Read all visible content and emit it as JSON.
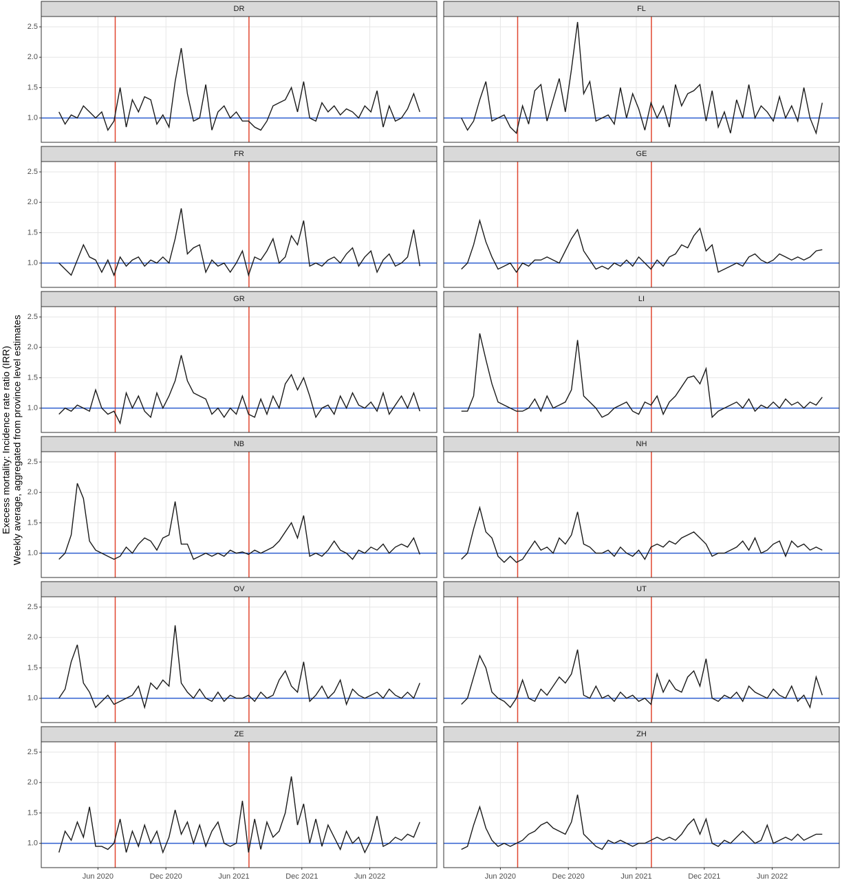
{
  "chart_data": {
    "type": "line",
    "y_label": [
      "Execess mortality: Incidence rate ratio (IRR)",
      "Weekly average, aggregated from province level estimates"
    ],
    "x": [
      2020.13,
      2020.175,
      2020.22,
      2020.265,
      2020.31,
      2020.355,
      2020.4,
      2020.445,
      2020.49,
      2020.535,
      2020.58,
      2020.625,
      2020.67,
      2020.715,
      2020.76,
      2020.805,
      2020.85,
      2020.895,
      2020.94,
      2020.985,
      2021.03,
      2021.075,
      2021.12,
      2021.165,
      2021.21,
      2021.255,
      2021.3,
      2021.345,
      2021.39,
      2021.435,
      2021.48,
      2021.525,
      2021.57,
      2021.615,
      2021.66,
      2021.705,
      2021.75,
      2021.795,
      2021.84,
      2021.885,
      2021.93,
      2021.975,
      2022.02,
      2022.065,
      2022.11,
      2022.155,
      2022.2,
      2022.245,
      2022.29,
      2022.335,
      2022.38,
      2022.425,
      2022.47,
      2022.515,
      2022.56,
      2022.605,
      2022.65,
      2022.695,
      2022.74,
      2022.785
    ],
    "xlim": [
      2020.0,
      2022.91
    ],
    "xticks": [
      {
        "value": 2020.417,
        "label": "Jun 2020"
      },
      {
        "value": 2020.917,
        "label": "Dec 2020"
      },
      {
        "value": 2021.417,
        "label": "Jun 2021"
      },
      {
        "value": 2021.917,
        "label": "Dec 2021"
      },
      {
        "value": 2022.417,
        "label": "Jun 2022"
      }
    ],
    "ylim": [
      0.6,
      2.67
    ],
    "yticks": [
      {
        "value": 1,
        "label": "1.0"
      },
      1.5,
      {
        "value": 2,
        "label": "2.0"
      },
      2.5
    ],
    "grid": true,
    "line_color": "#1a1a1a",
    "hline": {
      "value": 1,
      "color": "#2f5fd0"
    },
    "vlines": {
      "values": [
        2020.544,
        2021.528
      ],
      "color": "#e0452f"
    },
    "panels": [
      {
        "title": "DR",
        "values": [
          1.1,
          0.9,
          1.05,
          1.0,
          1.2,
          1.1,
          1.0,
          1.1,
          0.8,
          0.95,
          1.5,
          0.85,
          1.3,
          1.1,
          1.35,
          1.3,
          0.9,
          1.05,
          0.85,
          1.6,
          2.15,
          1.4,
          0.95,
          1.0,
          1.55,
          0.8,
          1.1,
          1.2,
          1.0,
          1.1,
          0.95,
          0.95,
          0.85,
          0.8,
          0.95,
          1.2,
          1.25,
          1.3,
          1.5,
          1.1,
          1.6,
          1.0,
          0.95,
          1.25,
          1.1,
          1.2,
          1.05,
          1.15,
          1.1,
          1.0,
          1.2,
          1.1,
          1.45,
          0.85,
          1.2,
          0.95,
          1.0,
          1.15,
          1.4,
          1.1
        ]
      },
      {
        "title": "FL",
        "values": [
          1.0,
          0.8,
          0.95,
          1.3,
          1.6,
          0.95,
          1.0,
          1.05,
          0.85,
          0.75,
          1.2,
          0.9,
          1.45,
          1.55,
          0.95,
          1.3,
          1.65,
          1.1,
          1.8,
          2.58,
          1.4,
          1.6,
          0.95,
          1.0,
          1.05,
          0.9,
          1.5,
          1.0,
          1.4,
          1.15,
          0.8,
          1.25,
          1.0,
          1.2,
          0.85,
          1.55,
          1.2,
          1.4,
          1.45,
          1.55,
          0.95,
          1.45,
          0.85,
          1.1,
          0.75,
          1.3,
          1.0,
          1.55,
          1.0,
          1.2,
          1.1,
          0.95,
          1.35,
          1.0,
          1.2,
          0.95,
          1.5,
          1.0,
          0.75,
          1.25
        ]
      },
      {
        "title": "FR",
        "values": [
          1.0,
          0.9,
          0.8,
          1.05,
          1.3,
          1.1,
          1.05,
          0.85,
          1.05,
          0.8,
          1.1,
          0.95,
          1.05,
          1.1,
          0.95,
          1.05,
          1.0,
          1.1,
          1.0,
          1.4,
          1.9,
          1.15,
          1.25,
          1.3,
          0.85,
          1.05,
          0.95,
          1.0,
          0.85,
          1.0,
          1.2,
          0.8,
          1.1,
          1.05,
          1.2,
          1.4,
          1.0,
          1.1,
          1.45,
          1.3,
          1.7,
          0.95,
          1.0,
          0.95,
          1.05,
          1.1,
          1.0,
          1.15,
          1.25,
          0.95,
          1.1,
          1.2,
          0.85,
          1.05,
          1.15,
          0.95,
          1.0,
          1.1,
          1.55,
          0.95
        ]
      },
      {
        "title": "GE",
        "values": [
          0.9,
          1.0,
          1.3,
          1.7,
          1.35,
          1.1,
          0.9,
          0.95,
          1.0,
          0.85,
          1.0,
          0.95,
          1.05,
          1.05,
          1.1,
          1.05,
          1.0,
          1.2,
          1.4,
          1.55,
          1.2,
          1.05,
          0.9,
          0.95,
          0.9,
          1.0,
          0.95,
          1.05,
          0.95,
          1.1,
          1.0,
          0.9,
          1.05,
          0.95,
          1.1,
          1.15,
          1.3,
          1.25,
          1.45,
          1.57,
          1.2,
          1.3,
          0.85,
          0.9,
          0.95,
          1.0,
          0.95,
          1.1,
          1.15,
          1.05,
          1.0,
          1.05,
          1.15,
          1.1,
          1.05,
          1.1,
          1.05,
          1.1,
          1.2,
          1.22
        ]
      },
      {
        "title": "GR",
        "values": [
          0.9,
          1.0,
          0.95,
          1.05,
          1.0,
          0.95,
          1.3,
          1.0,
          0.9,
          0.95,
          0.75,
          1.25,
          1.0,
          1.2,
          0.95,
          0.85,
          1.25,
          1.0,
          1.2,
          1.45,
          1.87,
          1.45,
          1.25,
          1.2,
          1.15,
          0.9,
          1.0,
          0.85,
          1.0,
          0.9,
          1.2,
          0.9,
          0.85,
          1.15,
          0.9,
          1.2,
          1.0,
          1.4,
          1.55,
          1.3,
          1.5,
          1.2,
          0.85,
          1.0,
          1.05,
          0.9,
          1.2,
          1.0,
          1.25,
          1.05,
          1.0,
          1.1,
          0.95,
          1.25,
          0.9,
          1.05,
          1.2,
          1.0,
          1.25,
          0.95
        ]
      },
      {
        "title": "LI",
        "values": [
          0.95,
          0.95,
          1.2,
          2.23,
          1.8,
          1.4,
          1.1,
          1.05,
          1.0,
          0.95,
          0.95,
          1.0,
          1.15,
          0.95,
          1.2,
          1.0,
          1.05,
          1.1,
          1.3,
          2.12,
          1.2,
          1.1,
          1.0,
          0.85,
          0.9,
          1.0,
          1.05,
          1.1,
          0.95,
          0.9,
          1.1,
          1.05,
          1.2,
          0.9,
          1.1,
          1.2,
          1.35,
          1.5,
          1.53,
          1.4,
          1.65,
          0.85,
          0.95,
          1.0,
          1.05,
          1.1,
          1.0,
          1.15,
          0.95,
          1.05,
          1.0,
          1.1,
          1.0,
          1.15,
          1.05,
          1.1,
          1.0,
          1.1,
          1.05,
          1.18
        ]
      },
      {
        "title": "NB",
        "values": [
          0.9,
          1.0,
          1.3,
          2.15,
          1.9,
          1.2,
          1.05,
          1.0,
          0.95,
          0.9,
          0.95,
          1.1,
          1.0,
          1.15,
          1.25,
          1.2,
          1.05,
          1.25,
          1.3,
          1.85,
          1.15,
          1.15,
          0.9,
          0.95,
          1.0,
          0.95,
          1.0,
          0.95,
          1.05,
          1.0,
          1.02,
          0.98,
          1.05,
          1.0,
          1.05,
          1.1,
          1.2,
          1.35,
          1.5,
          1.25,
          1.62,
          0.95,
          1.0,
          0.95,
          1.05,
          1.2,
          1.05,
          1.0,
          0.9,
          1.05,
          1.0,
          1.1,
          1.05,
          1.15,
          1.0,
          1.1,
          1.15,
          1.1,
          1.25,
          0.98
        ]
      },
      {
        "title": "NH",
        "values": [
          0.9,
          1.0,
          1.4,
          1.75,
          1.35,
          1.25,
          0.95,
          0.85,
          0.95,
          0.85,
          0.9,
          1.05,
          1.2,
          1.05,
          1.1,
          1.0,
          1.25,
          1.15,
          1.3,
          1.68,
          1.15,
          1.1,
          1.0,
          1.0,
          1.05,
          0.95,
          1.1,
          1.0,
          0.95,
          1.05,
          0.9,
          1.1,
          1.15,
          1.1,
          1.2,
          1.15,
          1.25,
          1.3,
          1.35,
          1.25,
          1.15,
          0.95,
          1.0,
          1.0,
          1.05,
          1.1,
          1.2,
          1.05,
          1.25,
          1.0,
          1.05,
          1.15,
          1.2,
          0.95,
          1.2,
          1.1,
          1.15,
          1.05,
          1.1,
          1.05
        ]
      },
      {
        "title": "OV",
        "values": [
          1.0,
          1.15,
          1.6,
          1.88,
          1.25,
          1.1,
          0.85,
          0.95,
          1.05,
          0.9,
          0.95,
          1.0,
          1.05,
          1.2,
          0.85,
          1.25,
          1.15,
          1.3,
          1.2,
          2.2,
          1.25,
          1.1,
          1.0,
          1.15,
          1.0,
          0.95,
          1.1,
          0.95,
          1.05,
          1.0,
          1.0,
          1.05,
          0.95,
          1.1,
          1.0,
          1.05,
          1.3,
          1.45,
          1.2,
          1.1,
          1.6,
          0.95,
          1.05,
          1.2,
          1.0,
          1.1,
          1.3,
          0.9,
          1.15,
          1.05,
          1.0,
          1.05,
          1.1,
          1.0,
          1.15,
          1.05,
          1.0,
          1.1,
          1.0,
          1.25
        ]
      },
      {
        "title": "UT",
        "values": [
          0.9,
          1.0,
          1.35,
          1.7,
          1.5,
          1.1,
          1.0,
          0.95,
          0.85,
          1.0,
          1.3,
          1.0,
          0.95,
          1.15,
          1.05,
          1.2,
          1.35,
          1.25,
          1.4,
          1.8,
          1.05,
          1.0,
          1.2,
          1.0,
          1.05,
          0.95,
          1.1,
          1.0,
          1.05,
          0.95,
          1.0,
          0.9,
          1.4,
          1.1,
          1.3,
          1.15,
          1.1,
          1.35,
          1.45,
          1.2,
          1.65,
          1.0,
          0.95,
          1.05,
          1.0,
          1.1,
          0.95,
          1.2,
          1.1,
          1.05,
          1.0,
          1.15,
          1.05,
          1.0,
          1.2,
          0.95,
          1.05,
          0.85,
          1.35,
          1.05
        ]
      },
      {
        "title": "ZE",
        "values": [
          0.85,
          1.2,
          1.05,
          1.35,
          1.1,
          1.6,
          0.95,
          0.95,
          0.9,
          1.0,
          1.4,
          0.85,
          1.2,
          0.95,
          1.3,
          1.0,
          1.2,
          0.85,
          1.1,
          1.55,
          1.15,
          1.35,
          1.0,
          1.3,
          0.95,
          1.2,
          1.35,
          1.0,
          0.95,
          1.0,
          1.7,
          0.85,
          1.4,
          0.9,
          1.35,
          1.1,
          1.2,
          1.5,
          2.1,
          1.3,
          1.65,
          1.0,
          1.4,
          0.95,
          1.3,
          1.1,
          0.9,
          1.2,
          1.0,
          1.1,
          0.85,
          1.05,
          1.45,
          0.95,
          1.0,
          1.1,
          1.05,
          1.15,
          1.1,
          1.35
        ]
      },
      {
        "title": "ZH",
        "values": [
          0.9,
          0.95,
          1.3,
          1.6,
          1.25,
          1.05,
          0.95,
          1.0,
          0.95,
          1.0,
          1.05,
          1.15,
          1.2,
          1.3,
          1.35,
          1.25,
          1.2,
          1.15,
          1.35,
          1.8,
          1.15,
          1.05,
          0.95,
          0.9,
          1.05,
          1.0,
          1.05,
          1.0,
          0.95,
          1.0,
          1.0,
          1.05,
          1.1,
          1.05,
          1.1,
          1.05,
          1.15,
          1.3,
          1.4,
          1.15,
          1.4,
          1.0,
          0.95,
          1.05,
          1.0,
          1.1,
          1.2,
          1.1,
          1.0,
          1.05,
          1.3,
          1.0,
          1.05,
          1.1,
          1.05,
          1.15,
          1.05,
          1.1,
          1.15,
          1.15
        ]
      }
    ]
  }
}
